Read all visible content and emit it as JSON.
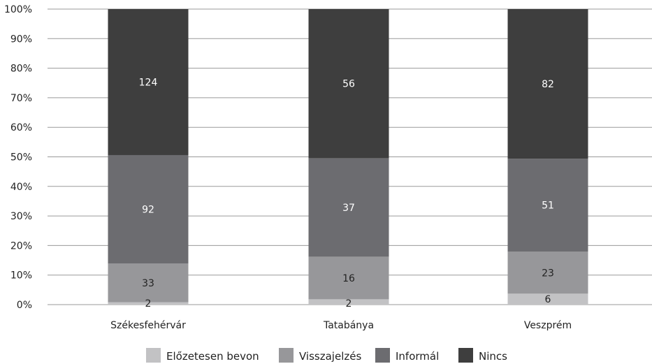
{
  "chart_data": {
    "type": "bar",
    "stacked": "percent",
    "orientation": "vertical",
    "categories": [
      "Székesfehérvár",
      "Tatabánya",
      "Veszprém"
    ],
    "series": [
      {
        "name": "Előzetesen bevon",
        "values": [
          2,
          2,
          6
        ],
        "color": "#c2c2c4",
        "label_color": "#222222"
      },
      {
        "name": "Visszajelzés",
        "values": [
          33,
          16,
          23
        ],
        "color": "#97979a",
        "label_color": "#222222"
      },
      {
        "name": "Informál",
        "values": [
          92,
          37,
          51
        ],
        "color": "#6c6c70",
        "label_color": "#ffffff"
      },
      {
        "name": "Nincs",
        "values": [
          124,
          56,
          82
        ],
        "color": "#3e3e3e",
        "label_color": "#ffffff"
      }
    ],
    "ylim": [
      0,
      100
    ],
    "y_ticks": [
      "0%",
      "10%",
      "20%",
      "30%",
      "40%",
      "50%",
      "60%",
      "70%",
      "80%",
      "90%",
      "100%"
    ],
    "grid": true,
    "legend_position": "bottom",
    "title": "",
    "xlabel": "",
    "ylabel": ""
  }
}
